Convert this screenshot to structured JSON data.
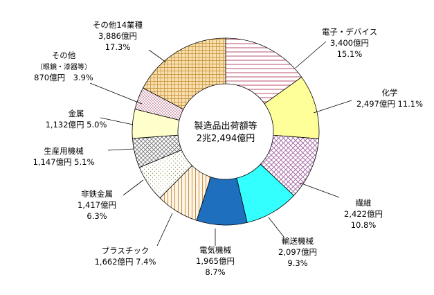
{
  "chart_data": {
    "type": "pie",
    "style": "donut",
    "center_label": [
      "製造品出荷額等",
      "2兆2,494億円"
    ],
    "slices": [
      {
        "name": "電子・デバイス",
        "value": 3400,
        "value_label": "3,400億円",
        "percent_label": "15.1%",
        "pattern": "hlines",
        "color": "#c0607a"
      },
      {
        "name": "化学",
        "value": 2497,
        "value_label": "2,497億円",
        "percent_label": "11.1%",
        "pattern": "solid",
        "color": "#ffff99"
      },
      {
        "name": "繊維",
        "value": 2422,
        "value_label": "2,422億円",
        "percent_label": "10.8%",
        "pattern": "diagcross",
        "color": "#a060a0"
      },
      {
        "name": "輸送機械",
        "value": 2097,
        "value_label": "2,097億円",
        "percent_label": "9.3%",
        "pattern": "solid",
        "color": "#33ffff"
      },
      {
        "name": "電気機械",
        "value": 1965,
        "value_label": "1,965億円",
        "percent_label": "8.7%",
        "pattern": "solid",
        "color": "#1f6fbf"
      },
      {
        "name": "プラスチック",
        "value": 1662,
        "value_label": "1,662億円",
        "percent_label": "7.4%",
        "pattern": "vlines",
        "color": "#c89650"
      },
      {
        "name": "非鉄金属",
        "value": 1417,
        "value_label": "1,417億円",
        "percent_label": "6.3%",
        "pattern": "sparsedots",
        "color": "#999966"
      },
      {
        "name": "生産用機械",
        "value": 1147,
        "value_label": "1,147億円",
        "percent_label": "5.1%",
        "pattern": "crosshatch",
        "color": "#777777"
      },
      {
        "name": "金属",
        "value": 1132,
        "value_label": "1,132億円",
        "percent_label": "5.0%",
        "pattern": "solid",
        "color": "#ffffcc"
      },
      {
        "name": "その他",
        "subname": "（眼鏡・漆器等）",
        "value": 870,
        "value_label": "870億円",
        "percent_label": "3.9%",
        "pattern": "dots",
        "color": "#aa4466"
      },
      {
        "name": "その他14業種",
        "value": 3886,
        "value_label": "3,886億円",
        "percent_label": "17.3%",
        "pattern": "grid",
        "color": "#cc9944"
      }
    ],
    "legend": "none"
  }
}
